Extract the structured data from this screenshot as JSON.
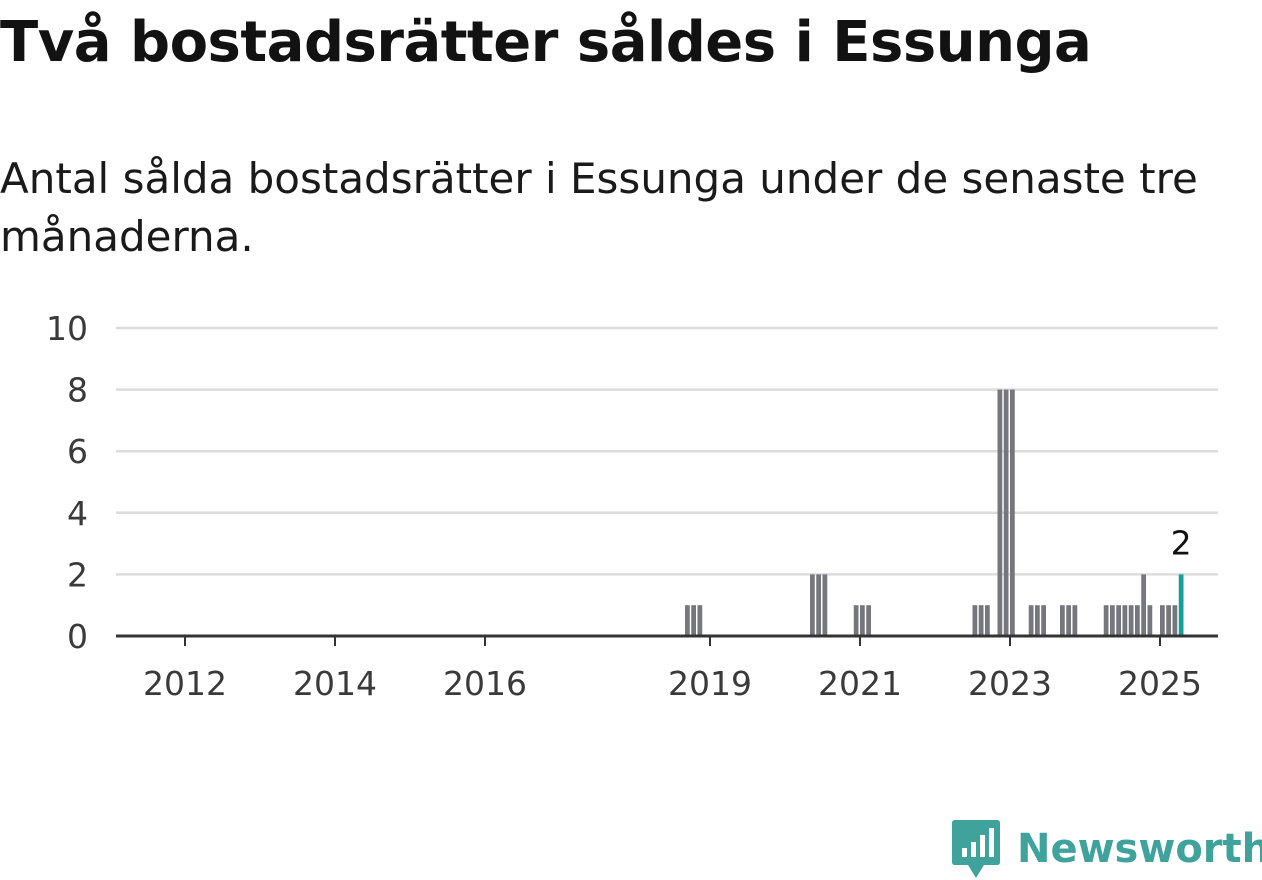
{
  "title": "Två bostadsrätter såldes i Essunga",
  "subtitle": "Antal sålda bostadsrätter i Essunga under de senaste tre månaderna.",
  "brand": {
    "name": "Newsworthy",
    "color": "#3fa39c"
  },
  "colors": {
    "bar": "#76767e",
    "highlight": "#12a09a",
    "grid": "#dcdcdc",
    "axis": "#333333"
  },
  "chart_data": {
    "type": "bar",
    "title": "Två bostadsrätter såldes i Essunga",
    "subtitle": "Antal sålda bostadsrätter i Essunga under de senaste tre månaderna.",
    "xlabel": "",
    "ylabel": "",
    "ylim": [
      0,
      10
    ],
    "yticks": [
      0,
      2,
      4,
      6,
      8,
      10
    ],
    "xticks": [
      "2012",
      "2014",
      "2016",
      "2019",
      "2021",
      "2023",
      "2025"
    ],
    "grid": true,
    "x_unit": "month",
    "series": [
      {
        "values": [
          {
            "x": "2018-09",
            "y": 1
          },
          {
            "x": "2018-10",
            "y": 1
          },
          {
            "x": "2018-11",
            "y": 1
          },
          {
            "x": "2020-05",
            "y": 2
          },
          {
            "x": "2020-06",
            "y": 2
          },
          {
            "x": "2020-07",
            "y": 2
          },
          {
            "x": "2020-12",
            "y": 1
          },
          {
            "x": "2021-01",
            "y": 1
          },
          {
            "x": "2021-02",
            "y": 1
          },
          {
            "x": "2022-07",
            "y": 1
          },
          {
            "x": "2022-08",
            "y": 1
          },
          {
            "x": "2022-09",
            "y": 1
          },
          {
            "x": "2022-11",
            "y": 8
          },
          {
            "x": "2022-12",
            "y": 8
          },
          {
            "x": "2023-01",
            "y": 8
          },
          {
            "x": "2023-04",
            "y": 1
          },
          {
            "x": "2023-05",
            "y": 1
          },
          {
            "x": "2023-06",
            "y": 1
          },
          {
            "x": "2023-09",
            "y": 1
          },
          {
            "x": "2023-10",
            "y": 1
          },
          {
            "x": "2023-11",
            "y": 1
          },
          {
            "x": "2024-04",
            "y": 1
          },
          {
            "x": "2024-05",
            "y": 1
          },
          {
            "x": "2024-06",
            "y": 1
          },
          {
            "x": "2024-07",
            "y": 1
          },
          {
            "x": "2024-08",
            "y": 1
          },
          {
            "x": "2024-09",
            "y": 1
          },
          {
            "x": "2024-10",
            "y": 2
          },
          {
            "x": "2024-11",
            "y": 1
          },
          {
            "x": "2025-01",
            "y": 1
          },
          {
            "x": "2025-02",
            "y": 1
          },
          {
            "x": "2025-03",
            "y": 1
          },
          {
            "x": "2025-04",
            "y": 2,
            "highlight": true,
            "label": "2"
          }
        ]
      }
    ]
  }
}
